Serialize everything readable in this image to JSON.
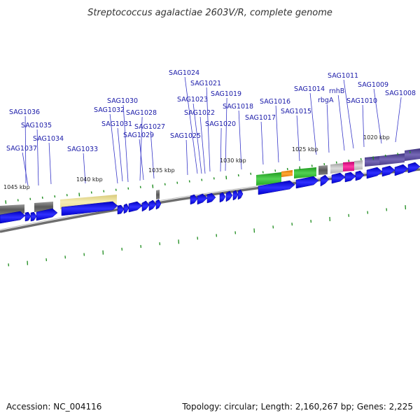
{
  "title": "Streptococcus agalactiae 2603V/R, complete genome",
  "footer": {
    "accession": "Accession: NC_004116",
    "topology": "Topology: circular; Length: 2,160,267 bp; Genes: 2,225"
  },
  "gene_labels": [
    "SAG1036",
    "SAG1035",
    "SAG1034",
    "SAG1037",
    "SAG1033",
    "SAG1032",
    "SAG1031",
    "SAG1030",
    "SAG1028",
    "SAG1029",
    "SAG1027",
    "SAG1024",
    "SAG1023",
    "SAG1025",
    "SAG1022",
    "SAG1021",
    "SAG1019",
    "SAG1020",
    "SAG1018",
    "SAG1017",
    "SAG1016",
    "SAG1015",
    "SAG1014",
    "rbgA",
    "rnhB",
    "SAG1011",
    "SAG1010",
    "SAG1009",
    "SAG1008"
  ],
  "kbp_labels": [
    "1045 kbp",
    "1040 kbp",
    "1035 kbp",
    "1030 kbp",
    "1025 kbp",
    "1020 kbp"
  ],
  "colors": {
    "gene_arrow": "#0a0ae6",
    "backbone": "#707070",
    "label": "#1a1aa8",
    "tick": "#1e8c1e",
    "cog_gray": "#6a6a6a",
    "cog_khaki": "#f0e6a0",
    "cog_green": "#2ab52a",
    "cog_orange": "#f08a10",
    "cog_magenta": "#e0108c",
    "cog_silver": "#b8b8b8",
    "cog_purple": "#5a4a9a"
  }
}
